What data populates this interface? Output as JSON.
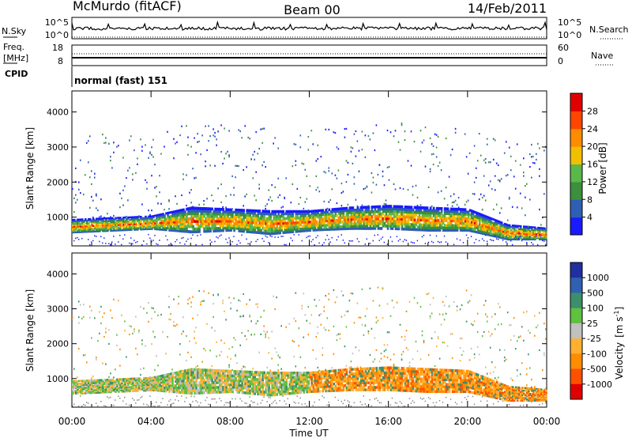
{
  "header": {
    "station": "McMurdo (fitACF)",
    "beam": "Beam 00",
    "date": "14/Feb/2011"
  },
  "top_panels": {
    "nsky_label": "N.Sky",
    "nsky_ticks": [
      "10^5",
      "10^0"
    ],
    "nsearch_label": "N.Search",
    "nsearch_ticks": [
      "10^5",
      "10^0"
    ],
    "freq_label": "Freq.",
    "freq_unit": "[MHz]",
    "freq_ticks": [
      "18",
      "8"
    ],
    "nave_label": "Nave",
    "nave_ticks": [
      "60",
      "0"
    ],
    "cpid_label": "CPID",
    "cpid_value": "normal (fast) 151"
  },
  "chart_data": [
    {
      "type": "heatmap",
      "title": "",
      "xlabel": "",
      "ylabel": "Slant Range [km]",
      "x_ticks": [
        "00:00",
        "04:00",
        "08:00",
        "12:00",
        "16:00",
        "20:00",
        "00:00"
      ],
      "xlim_hours": [
        0,
        24
      ],
      "ylim": [
        180,
        4600
      ],
      "y_ticks": [
        1000,
        2000,
        3000,
        4000
      ],
      "colorbar": {
        "label": "Power [dB]",
        "ticks": [
          "4",
          "8",
          "12",
          "16",
          "20",
          "24",
          "28"
        ],
        "colors": [
          "#1a1aff",
          "#2e5fb5",
          "#3c8f3c",
          "#5ab84a",
          "#f0c000",
          "#ff8c00",
          "#ff4500",
          "#e00000"
        ]
      },
      "main_echo_band_km": [
        {
          "t": 0,
          "lo": 550,
          "hi": 950
        },
        {
          "t": 2,
          "lo": 600,
          "hi": 1000
        },
        {
          "t": 4,
          "lo": 650,
          "hi": 1050
        },
        {
          "t": 6,
          "lo": 550,
          "hi": 1300
        },
        {
          "t": 8,
          "lo": 600,
          "hi": 1250
        },
        {
          "t": 10,
          "lo": 500,
          "hi": 1200
        },
        {
          "t": 12,
          "lo": 600,
          "hi": 1200
        },
        {
          "t": 14,
          "lo": 650,
          "hi": 1300
        },
        {
          "t": 16,
          "lo": 650,
          "hi": 1350
        },
        {
          "t": 18,
          "lo": 600,
          "hi": 1300
        },
        {
          "t": 20,
          "lo": 600,
          "hi": 1250
        },
        {
          "t": 22,
          "lo": 350,
          "hi": 800
        },
        {
          "t": 24,
          "lo": 350,
          "hi": 700
        }
      ]
    },
    {
      "type": "heatmap",
      "title": "",
      "xlabel": "Time UT",
      "ylabel": "Slant Range [km]",
      "x_ticks": [
        "00:00",
        "04:00",
        "08:00",
        "12:00",
        "16:00",
        "20:00",
        "00:00"
      ],
      "xlim_hours": [
        0,
        24
      ],
      "ylim": [
        180,
        4600
      ],
      "y_ticks": [
        1000,
        2000,
        3000,
        4000
      ],
      "colorbar": {
        "label": "Velocity [m s-1]",
        "label_main": "Velocity",
        "label_unit": "[m s",
        "label_exp": "-1",
        "label_close": "]",
        "ticks": [
          "1000",
          "500",
          "100",
          "25",
          "-25",
          "-100",
          "-500",
          "-1000"
        ],
        "colors": [
          "#2030a0",
          "#3060b0",
          "#3c8f6c",
          "#60c040",
          "#c0c0c0",
          "#ffb030",
          "#ff8c00",
          "#ff5000",
          "#e00000"
        ]
      }
    }
  ]
}
